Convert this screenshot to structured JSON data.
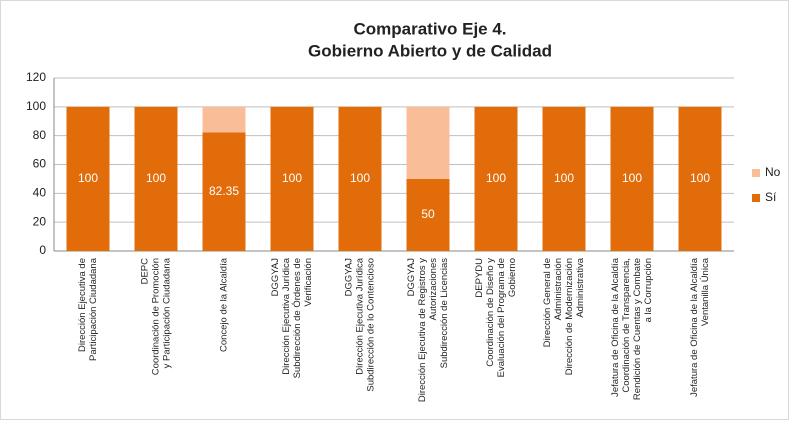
{
  "chart_data": {
    "type": "stacked_bar",
    "title": [
      "Comparativo  Eje 4.",
      "Gobierno Abierto y  de Calidad"
    ],
    "categories": [
      [
        "Dirección Ejecutiva de",
        "Participación Ciudadana"
      ],
      [
        "DEPC",
        "Coordinación de Promoción",
        "y Participación Ciudadana"
      ],
      [
        "Concejo de la Alcaldía"
      ],
      [
        "DGGYAJ",
        "Dirección Ejecutiva Jurídica",
        "Subdirección de Órdenes de",
        "Verificación"
      ],
      [
        "DGGYAJ",
        "Dirección Ejecutiva Jurídica",
        "Subdirección de lo Contencioso"
      ],
      [
        "DGGYAJ",
        "Dirección Ejecutiva de Registros y",
        "Autorizaciones",
        "Subdirección de Licencias"
      ],
      [
        "DEPYDU",
        "Coordinación de Diseño y",
        "Evaluación del Programa de",
        "Gobierno"
      ],
      [
        "Dirección General de",
        "Administración",
        "Dirección de Modernización",
        "Administrativa"
      ],
      [
        "Jefatura de Oficina de la Alcaldía",
        "Coordinación de Transparencia,",
        "Rendición de Cuentas y Combate",
        "a la Corrupción"
      ],
      [
        "Jefatura de Oficina de la Alcaldía",
        "Ventanilla Única"
      ]
    ],
    "series": [
      {
        "name": "Sí",
        "color": "#e36c0a",
        "values": [
          100,
          100,
          82.35,
          100,
          100,
          50,
          100,
          100,
          100,
          100
        ],
        "data_labels": true
      },
      {
        "name": "No",
        "color": "#f9bd98",
        "values": [
          0,
          0,
          17.65,
          0,
          0,
          50,
          0,
          0,
          0,
          0
        ],
        "data_labels": false
      }
    ],
    "ylim": [
      0,
      120
    ],
    "yticks": [
      0,
      20,
      40,
      60,
      80,
      100,
      120
    ],
    "grid": true,
    "legend": "right"
  }
}
